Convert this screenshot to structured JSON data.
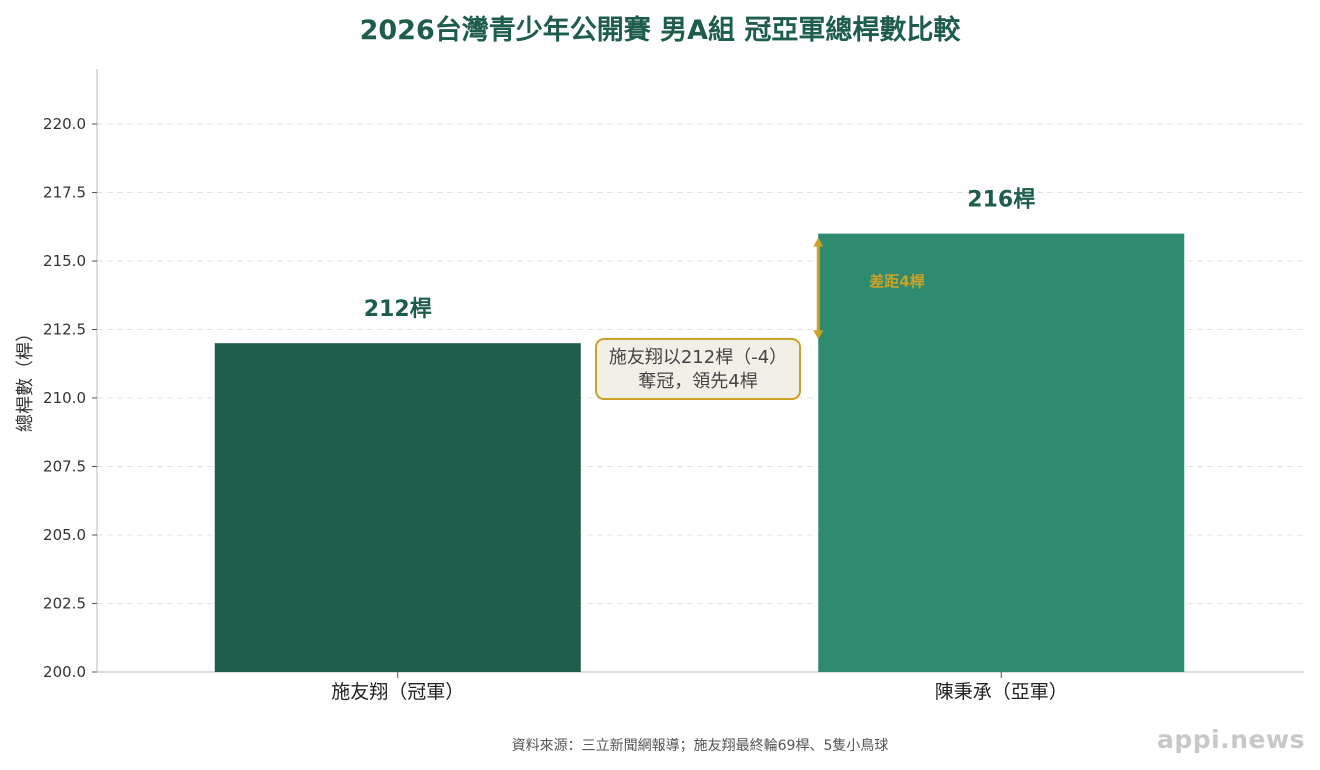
{
  "chart_data": {
    "type": "bar",
    "title": "2026台灣青少年公開賽 男A組 冠亞軍總桿數比較",
    "ylabel": "總桿數（桿）",
    "xlabel": "",
    "categories": [
      "施友翔（冠軍）",
      "陳秉承（亞軍）"
    ],
    "values": [
      212,
      216
    ],
    "value_labels": [
      "212桿",
      "216桿"
    ],
    "bar_colors": [
      "#1e5c4c",
      "#2e8b70"
    ],
    "ylim": [
      200,
      221
    ],
    "yticks": [
      200.0,
      202.5,
      205.0,
      207.5,
      210.0,
      212.5,
      215.0,
      217.5,
      220.0
    ],
    "ytick_labels": [
      "200.0",
      "202.5",
      "205.0",
      "207.5",
      "210.0",
      "212.5",
      "215.0",
      "217.5",
      "220.0"
    ],
    "grid": "horizontal dashed",
    "annotations": {
      "gap_label": "差距4桿",
      "callout_line1": "施友翔以212桿（-4）",
      "callout_line2": "奪冠，領先4桿"
    }
  },
  "footer": {
    "source": "資料來源：三立新聞網報導；施友翔最終輪69桿、5隻小鳥球",
    "watermark": "appi.news"
  },
  "colors": {
    "title": "#1e5c4c",
    "accent": "#c9a227",
    "callout_bg": "#f2efe6"
  }
}
